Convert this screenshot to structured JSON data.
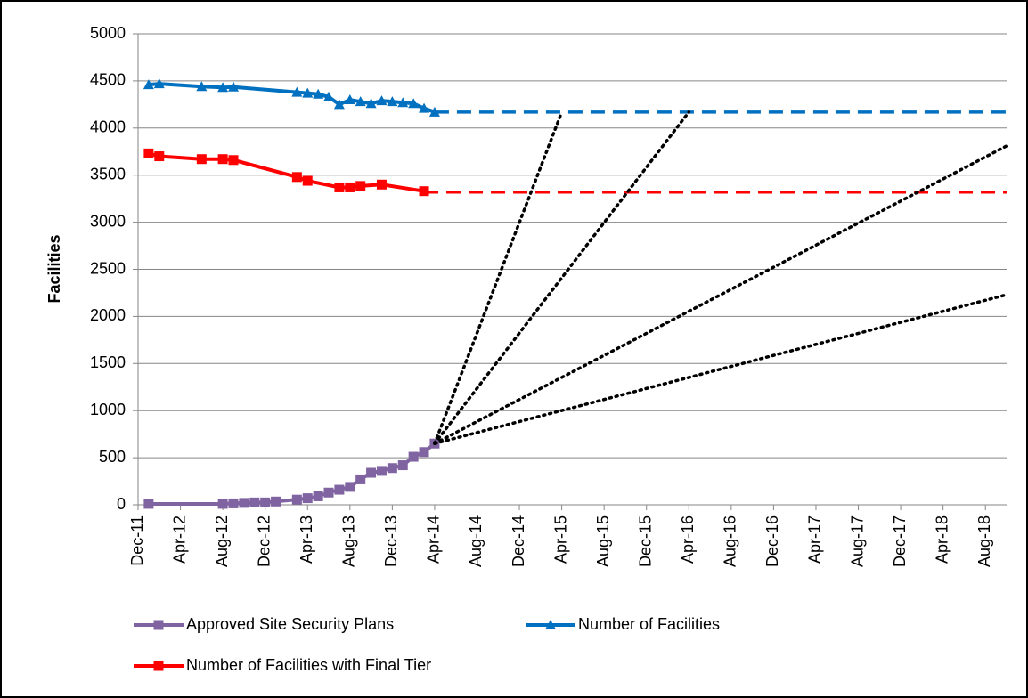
{
  "chart_data": {
    "type": "line",
    "y_label": "Facilities",
    "xlim": [
      "Dec-11",
      "Oct-18"
    ],
    "xticks": [
      "Dec-11",
      "Apr-12",
      "Aug-12",
      "Dec-12",
      "Apr-13",
      "Aug-13",
      "Dec-13",
      "Apr-14",
      "Aug-14",
      "Dec-14",
      "Apr-15",
      "Aug-15",
      "Dec-15",
      "Apr-16",
      "Aug-16",
      "Dec-16",
      "Apr-17",
      "Aug-17",
      "Dec-17",
      "Apr-18",
      "Aug-18"
    ],
    "ylim": [
      0,
      5000
    ],
    "yticks": [
      0,
      500,
      1000,
      1500,
      2000,
      2500,
      3000,
      3500,
      4000,
      4500,
      5000
    ],
    "grid": true,
    "legend": "bottom",
    "series": [
      {
        "name": "Approved Site Security Plans",
        "color": "#8064a2",
        "marker": "square",
        "dash": "solid",
        "x": [
          "Jan-12",
          "Aug-12",
          "Sep-12",
          "Oct-12",
          "Nov-12",
          "Dec-12",
          "Jan-13",
          "Mar-13",
          "Apr-13",
          "May-13",
          "Jun-13",
          "Jul-13",
          "Aug-13",
          "Sep-13",
          "Oct-13",
          "Nov-13",
          "Dec-13",
          "Jan-14",
          "Feb-14",
          "Mar-14",
          "Apr-14"
        ],
        "values": [
          10,
          10,
          15,
          20,
          25,
          25,
          35,
          55,
          70,
          90,
          130,
          160,
          190,
          270,
          340,
          360,
          390,
          420,
          510,
          560,
          650
        ]
      },
      {
        "name": "Number of Facilities",
        "color": "#0070c0",
        "marker": "triangle",
        "dash": "solid",
        "x": [
          "Jan-12",
          "Feb-12",
          "Jun-12",
          "Aug-12",
          "Sep-12",
          "Mar-13",
          "Apr-13",
          "May-13",
          "Jun-13",
          "Jul-13",
          "Aug-13",
          "Sep-13",
          "Oct-13",
          "Nov-13",
          "Dec-13",
          "Jan-14",
          "Feb-14",
          "Mar-14",
          "Apr-14"
        ],
        "values": [
          4460,
          4470,
          4440,
          4430,
          4435,
          4380,
          4370,
          4360,
          4330,
          4250,
          4300,
          4280,
          4260,
          4290,
          4280,
          4270,
          4260,
          4210,
          4170
        ]
      },
      {
        "name": "Number of Facilities with Final Tier",
        "color": "#ff0000",
        "marker": "square",
        "dash": "solid",
        "x": [
          "Jan-12",
          "Feb-12",
          "Jun-12",
          "Aug-12",
          "Sep-12",
          "Mar-13",
          "Apr-13",
          "Jul-13",
          "Aug-13",
          "Sep-13",
          "Nov-13",
          "Mar-14"
        ],
        "values": [
          3730,
          3700,
          3670,
          3670,
          3660,
          3480,
          3440,
          3370,
          3370,
          3385,
          3400,
          3330
        ]
      },
      {
        "color": "#0070c0",
        "dash": "dashed",
        "x": [
          "Apr-14",
          "Oct-18"
        ],
        "values": [
          4170,
          4170
        ]
      },
      {
        "color": "#ff0000",
        "dash": "dashed",
        "x": [
          "Mar-14",
          "Oct-18"
        ],
        "values": [
          3320,
          3320
        ]
      },
      {
        "color": "#000000",
        "dash": "dotted",
        "x": [
          "Apr-14",
          "Apr-15"
        ],
        "values": [
          650,
          4170
        ]
      },
      {
        "color": "#000000",
        "dash": "dotted",
        "x": [
          "Apr-14",
          "Apr-16"
        ],
        "values": [
          650,
          4170
        ]
      },
      {
        "color": "#000000",
        "dash": "dotted",
        "x": [
          "Apr-14",
          "Oct-18"
        ],
        "values": [
          650,
          3810
        ]
      },
      {
        "color": "#000000",
        "dash": "dotted",
        "x": [
          "Apr-14",
          "Oct-18"
        ],
        "values": [
          650,
          2230
        ]
      }
    ]
  }
}
